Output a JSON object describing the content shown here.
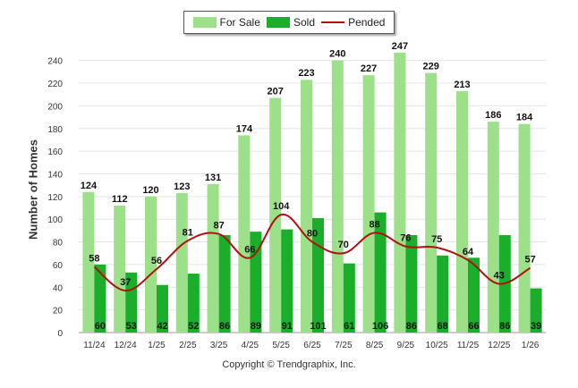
{
  "chart_data": {
    "type": "bar",
    "ylabel": "Number of Homes",
    "ylim": [
      0,
      250
    ],
    "yticks": [
      0,
      20,
      40,
      60,
      80,
      100,
      120,
      140,
      160,
      180,
      200,
      220,
      240
    ],
    "grid": true,
    "legend_position": "top-center",
    "categories": [
      "11/24",
      "12/24",
      "1/25",
      "2/25",
      "3/25",
      "4/25",
      "5/25",
      "6/25",
      "7/25",
      "8/25",
      "9/25",
      "10/25",
      "11/25",
      "12/25",
      "1/26"
    ],
    "series": [
      {
        "name": "For Sale",
        "kind": "bar",
        "color": "#9de08a",
        "values": [
          124,
          112,
          120,
          123,
          131,
          174,
          207,
          223,
          240,
          227,
          247,
          229,
          213,
          186,
          184
        ]
      },
      {
        "name": "Sold",
        "kind": "bar",
        "color": "#1aae2a",
        "values": [
          60,
          53,
          42,
          52,
          86,
          89,
          91,
          101,
          61,
          106,
          86,
          68,
          66,
          86,
          39
        ]
      },
      {
        "name": "Pended",
        "kind": "line",
        "color": "#b01010",
        "values": [
          58,
          37,
          56,
          81,
          87,
          66,
          104,
          80,
          70,
          88,
          76,
          75,
          64,
          43,
          57
        ]
      }
    ]
  },
  "copyright": "Copyright © Trendgraphix, Inc."
}
